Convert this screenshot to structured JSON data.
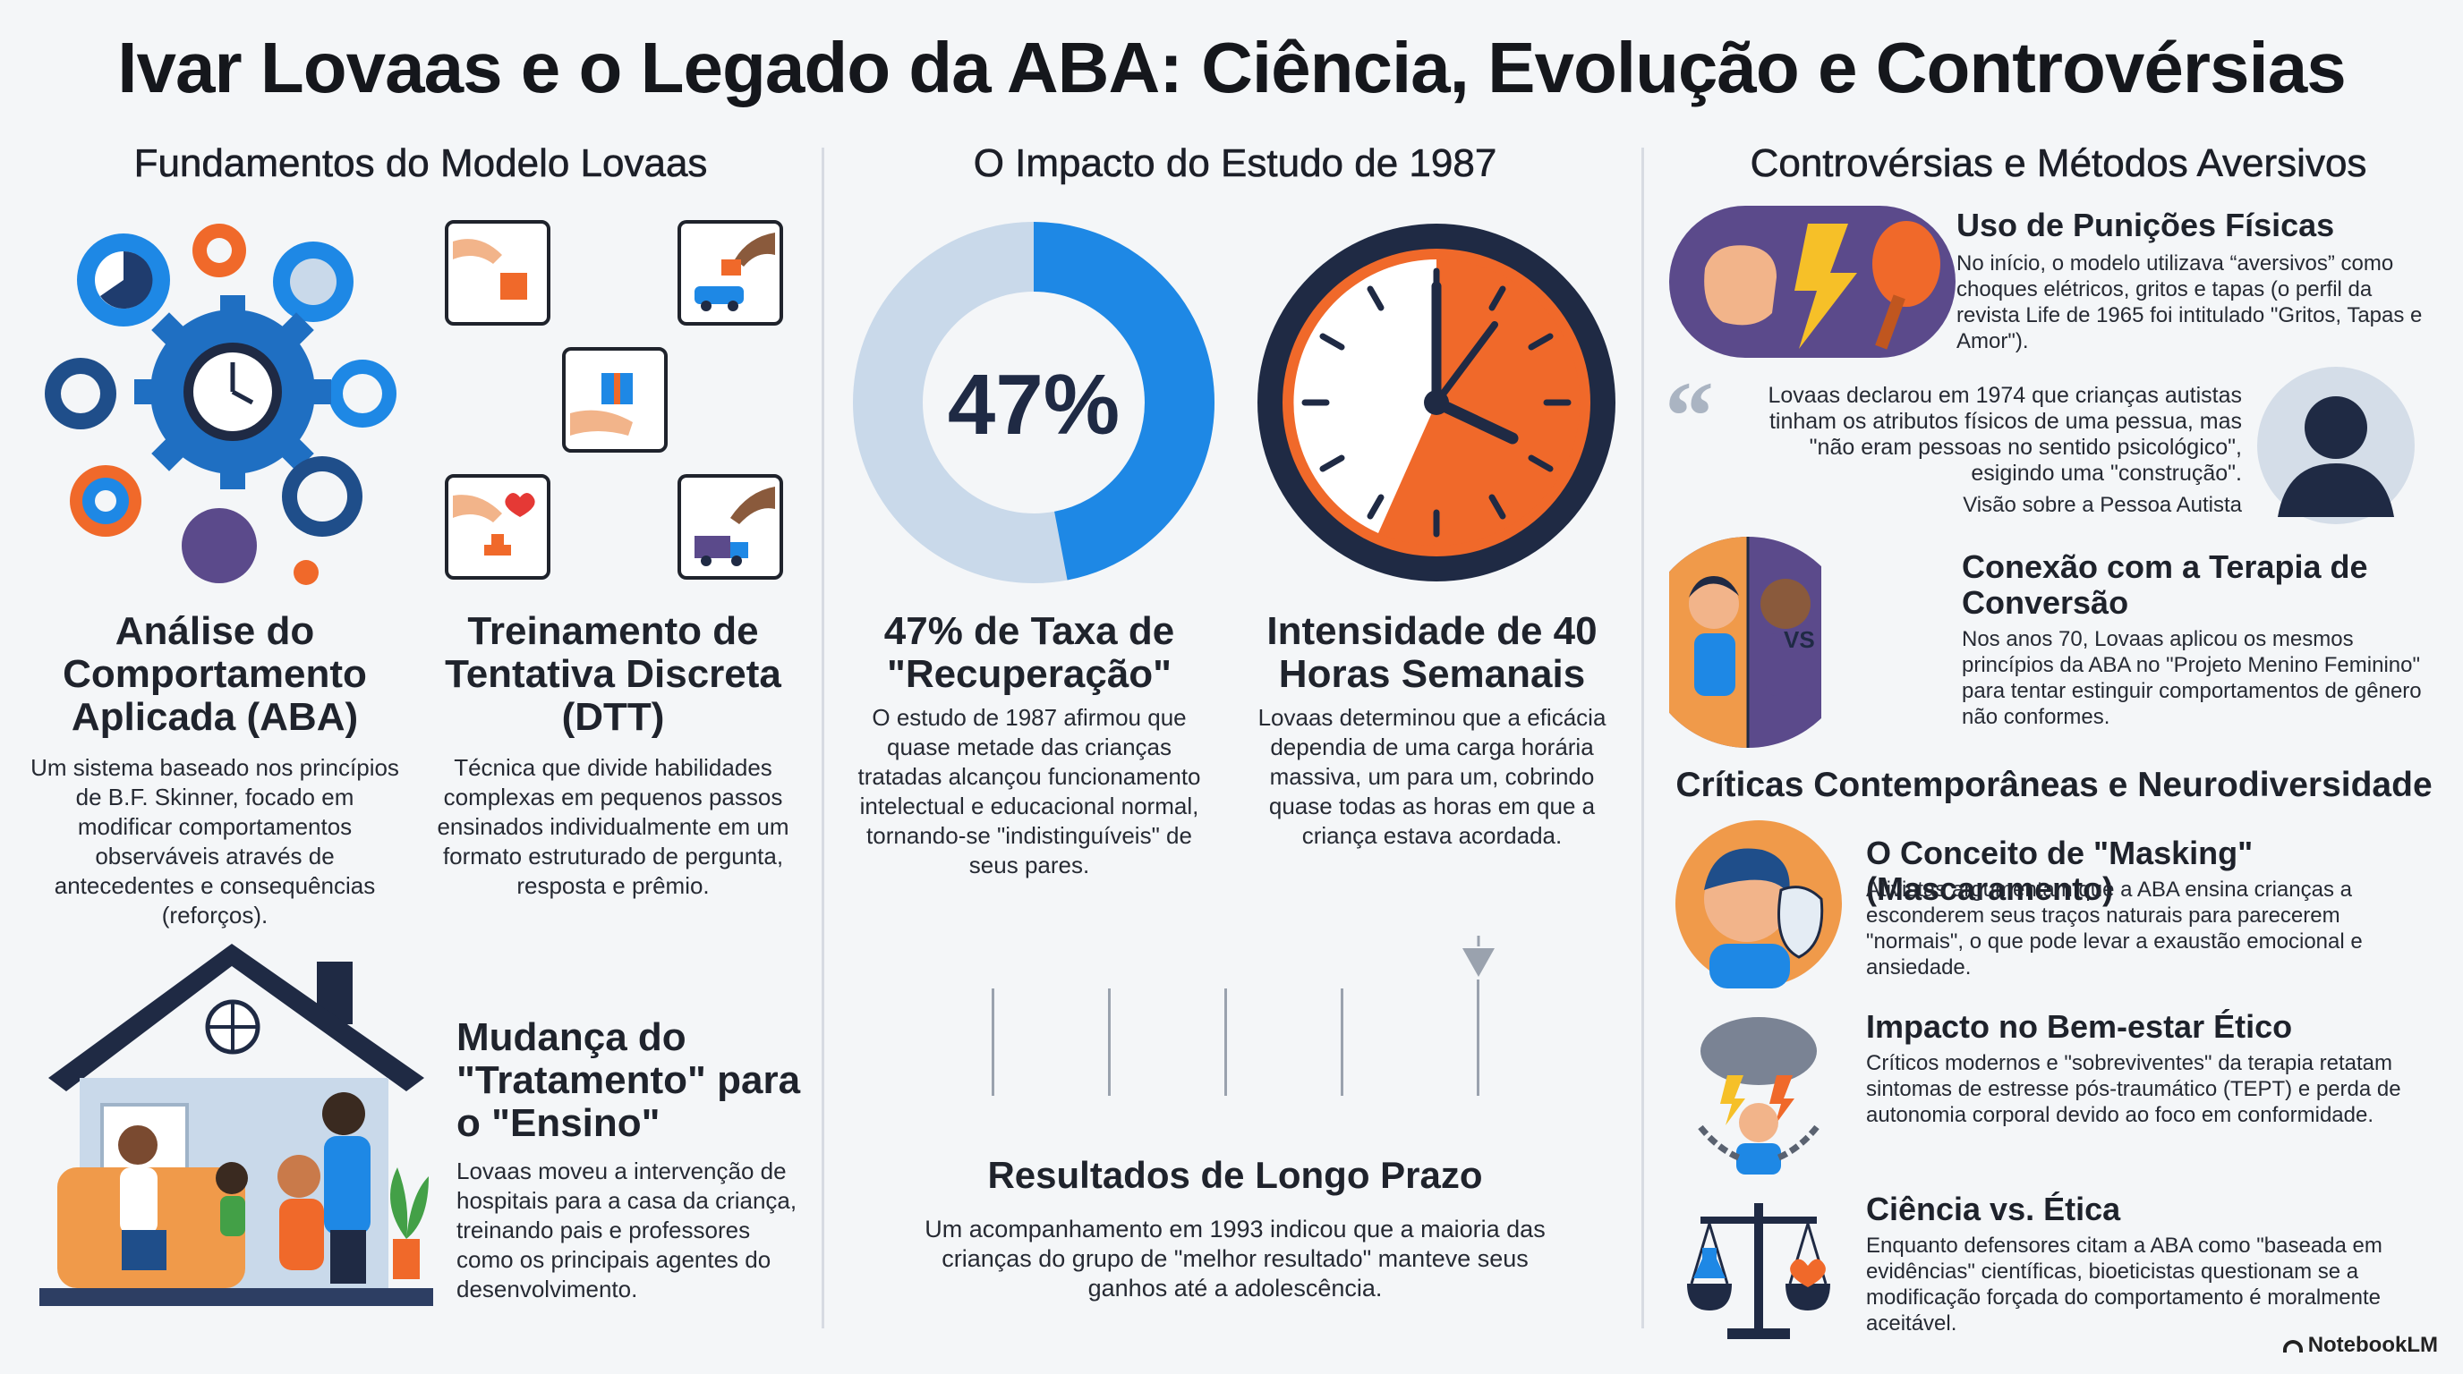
{
  "title": "Ivar Lovaas e o Legado da ABA: Ciência, Evolução e Controvérsias",
  "col1": {
    "heading": "Fundamentos do Modelo Lovaas",
    "aba_title": "Análise do Comportamento Aplicada (ABA)",
    "aba_body": "Um sistema baseado nos princípios de B.F. Skinner, focado em modificar comportamentos observáveis através de antecedentes e consequências (reforços).",
    "dtt_title": "Treinamento de Tentativa Discreta (DTT)",
    "dtt_body": "Técnica que divide habilidades complexas em pequenos passos ensinados individualmente em um formato estruturado de pergunta, resposta e prêmio.",
    "shift_title": "Mudança do \"Tratamento\" para o \"Ensino\"",
    "shift_body": "Lovaas moveu a intervenção de hospitais para a casa da criança, treinando pais e professores como os principais agentes do desenvolvimento."
  },
  "col2": {
    "heading": "O Impacto do Estudo de 1987",
    "donut_value": "47%",
    "donut_fraction": 0.47,
    "rate_title": "47% de Taxa de \"Recuperação\"",
    "rate_body": "O estudo de 1987 afirmou que quase metade das crianças tratadas alcançou funcionamento intelectual e educacional normal, tornando-se \"indistinguíveis\" de seus pares.",
    "hours_title": "Intensidade de 40 Horas Semanais",
    "hours_body": "Lovaas determinou que a eficácia dependia de uma carga horária massiva, um para um, cobrindo quase todas as horas em que a criança estava acordada.",
    "long_title": "Resultados de Longo Prazo",
    "long_body": "Um acompanhamento em 1993 indicou que a maioria das crianças do grupo de \"melhor resultado\" manteve seus ganhos até a adolescência."
  },
  "col3": {
    "heading": "Controvérsias e Métodos Aversivos",
    "punish_title": "Uso de Punições Físicas",
    "punish_body": "No início, o modelo utilizava “aversivos” como choques elétricos, gritos e tapas (o perfil da revista Life de 1965 foi intitulado \"Gritos, Tapas e Amor\").",
    "quote_body": "Lovaas declarou em 1974 que crianças autistas tinham os atributos físicos de uma pessua, mas \"não eram pessoas no sentido psicológico\", esigindo uma \"construção\".",
    "quote_caption": "Visão sobre a Pessoa Autista",
    "vs_label": "VS",
    "conversion_title": "Conexão com a Terapia de Conversão",
    "conversion_body": "Nos anos 70, Lovaas aplicou os mesmos princípios da ABA no \"Projeto Menino Feminino\" para tentar estinguir comportamentos de gênero não conformes.",
    "critiques_heading": "Críticas Contemporâneas e Neurodiversidade",
    "masking_title": "O Conceito de \"Masking\" (Mascaramento)",
    "masking_body": "Ativistas argumentam que a ABA ensina crianças a esconderem seus traços naturais para parecerem \"normais\", o que pode levar a exaustão emocional e ansiedade.",
    "ethics_title": "Impacto no Bem-estar Ético",
    "ethics_body": "Críticos modernos e \"sobreviventes\" da terapia retatam sintomas de estresse pós-traumático (TEPT) e perda de autonomia corporal devido ao foco em conformidade.",
    "science_title": "Ciência vs. Ética",
    "science_body": "Enquanto defensores citam a ABA como \"baseada em evidências\" científicas, bioeticistas questionam se a modificação forçada do comportamento é moralmente aceitável."
  },
  "brand": "NotebookLM",
  "colors": {
    "blue": "#1e88e5",
    "light_blue": "#c9d9ea",
    "orange": "#f0692a",
    "navy": "#1f2a44",
    "purple": "#5b4a8b"
  }
}
